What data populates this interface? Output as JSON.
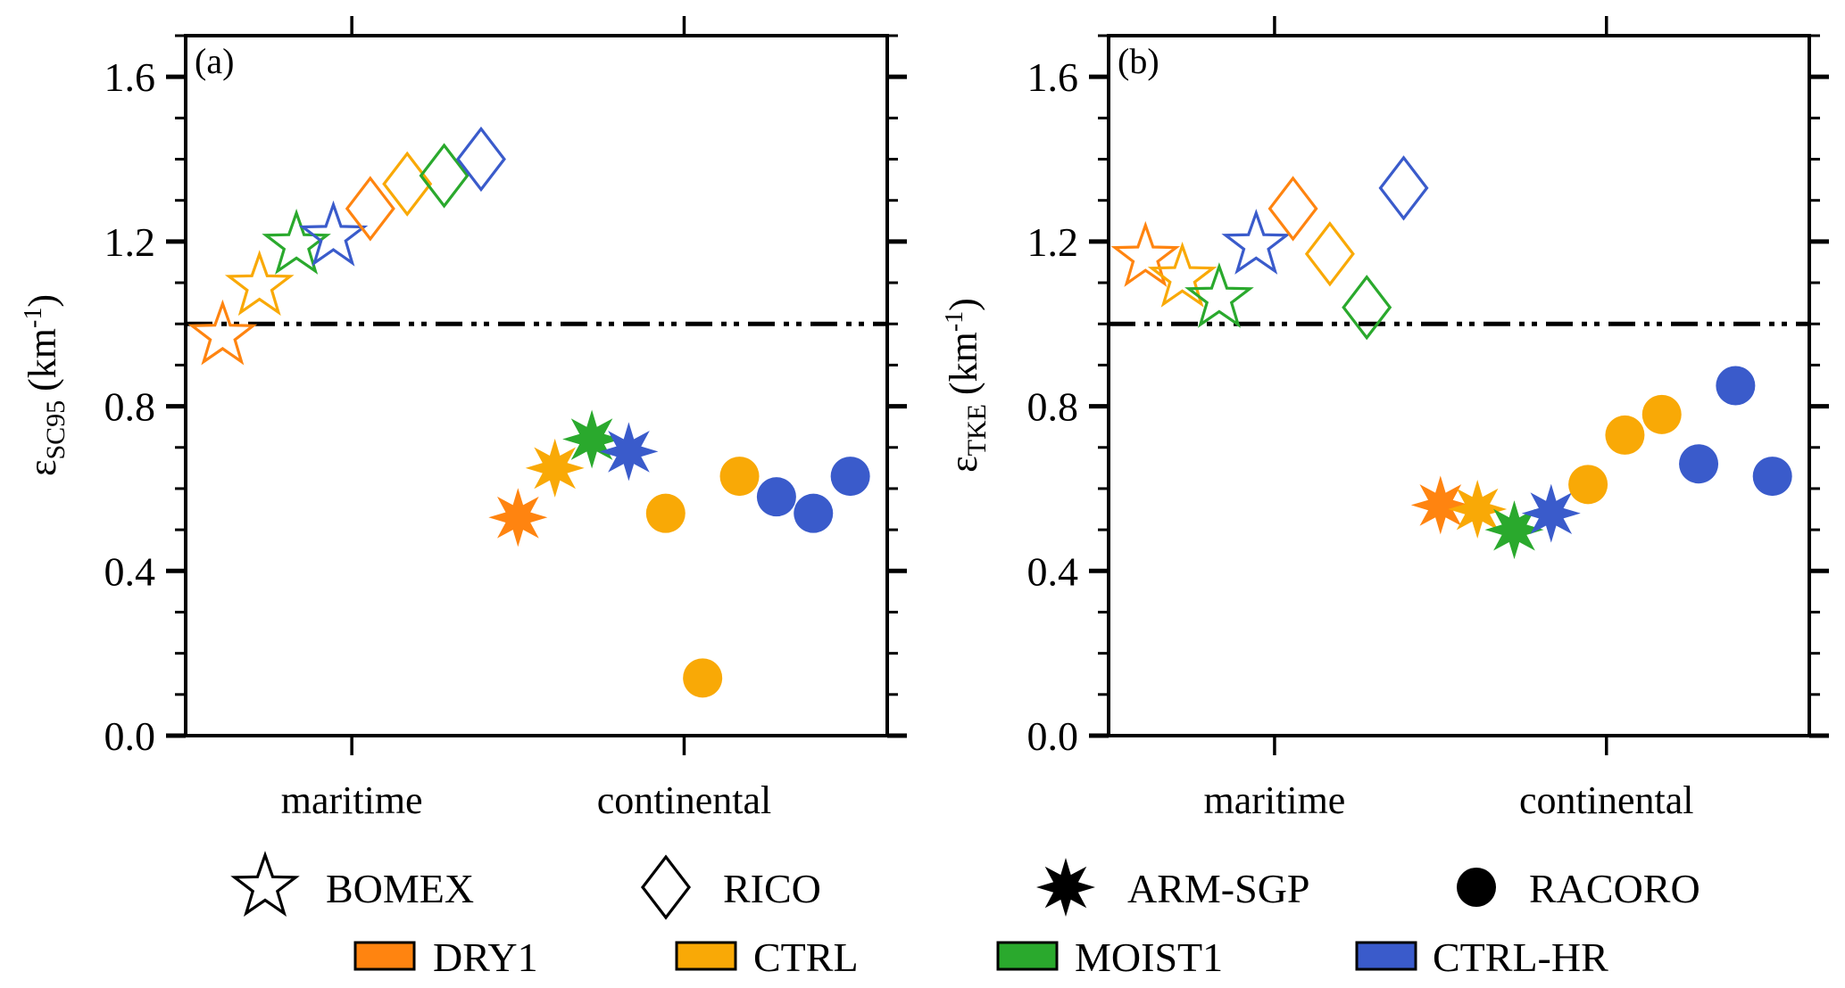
{
  "colors": {
    "DRY1": "#FF8410",
    "CTRL": "#F9A906",
    "MOIST1": "#2AA92D",
    "CTRL-HR": "#3A5BCB",
    "axis": "#000000"
  },
  "chart_data": [
    {
      "type": "scatter",
      "panel_label": "(a)",
      "ylabel_main": "ε",
      "ylabel_sub": "SC95",
      "ylabel_unit": "(km",
      "ylabel_sup": "-1",
      "ylabel_close": ")",
      "ylim": [
        0.0,
        1.7
      ],
      "yticks": [
        0.0,
        0.4,
        0.8,
        1.2,
        1.6
      ],
      "ytick_labels": [
        "0.0",
        "0.4",
        "0.8",
        "1.2",
        "1.6"
      ],
      "yminor_step": 0.1,
      "x_categories": [
        "maritime",
        "continental"
      ],
      "reference_line": 1.0,
      "points": [
        {
          "case": "BOMEX",
          "experiment": "DRY1",
          "y": 0.98
        },
        {
          "case": "BOMEX",
          "experiment": "CTRL",
          "y": 1.1
        },
        {
          "case": "BOMEX",
          "experiment": "MOIST1",
          "y": 1.2
        },
        {
          "case": "BOMEX",
          "experiment": "CTRL-HR",
          "y": 1.22
        },
        {
          "case": "RICO",
          "experiment": "DRY1",
          "y": 1.28
        },
        {
          "case": "RICO",
          "experiment": "CTRL",
          "y": 1.34
        },
        {
          "case": "RICO",
          "experiment": "MOIST1",
          "y": 1.36
        },
        {
          "case": "RICO",
          "experiment": "CTRL-HR",
          "y": 1.4
        },
        {
          "case": "ARM-SGP",
          "experiment": "DRY1",
          "y": 0.53
        },
        {
          "case": "ARM-SGP",
          "experiment": "CTRL",
          "y": 0.65
        },
        {
          "case": "ARM-SGP",
          "experiment": "MOIST1",
          "y": 0.72
        },
        {
          "case": "ARM-SGP",
          "experiment": "CTRL-HR",
          "y": 0.69
        },
        {
          "case": "RACORO",
          "experiment": "CTRL",
          "y": 0.54
        },
        {
          "case": "RACORO",
          "experiment": "CTRL",
          "y": 0.14
        },
        {
          "case": "RACORO",
          "experiment": "CTRL",
          "y": 0.63
        },
        {
          "case": "RACORO",
          "experiment": "CTRL-HR",
          "y": 0.58
        },
        {
          "case": "RACORO",
          "experiment": "CTRL-HR",
          "y": 0.54
        },
        {
          "case": "RACORO",
          "experiment": "CTRL-HR",
          "y": 0.63
        }
      ]
    },
    {
      "type": "scatter",
      "panel_label": "(b)",
      "ylabel_main": "ε",
      "ylabel_sub": "TKE",
      "ylabel_unit": "(km",
      "ylabel_sup": "-1",
      "ylabel_close": ")",
      "ylim": [
        0.0,
        1.7
      ],
      "yticks": [
        0.0,
        0.4,
        0.8,
        1.2,
        1.6
      ],
      "ytick_labels": [
        "0.0",
        "0.4",
        "0.8",
        "1.2",
        "1.6"
      ],
      "yminor_step": 0.1,
      "x_categories": [
        "maritime",
        "continental"
      ],
      "reference_line": 1.0,
      "points": [
        {
          "case": "BOMEX",
          "experiment": "DRY1",
          "y": 1.17
        },
        {
          "case": "BOMEX",
          "experiment": "CTRL",
          "y": 1.12
        },
        {
          "case": "BOMEX",
          "experiment": "MOIST1",
          "y": 1.07
        },
        {
          "case": "BOMEX",
          "experiment": "CTRL-HR",
          "y": 1.2
        },
        {
          "case": "RICO",
          "experiment": "DRY1",
          "y": 1.28
        },
        {
          "case": "RICO",
          "experiment": "CTRL",
          "y": 1.17
        },
        {
          "case": "RICO",
          "experiment": "MOIST1",
          "y": 1.04
        },
        {
          "case": "RICO",
          "experiment": "CTRL-HR",
          "y": 1.33
        },
        {
          "case": "ARM-SGP",
          "experiment": "DRY1",
          "y": 0.56
        },
        {
          "case": "ARM-SGP",
          "experiment": "CTRL",
          "y": 0.55
        },
        {
          "case": "ARM-SGP",
          "experiment": "MOIST1",
          "y": 0.5
        },
        {
          "case": "ARM-SGP",
          "experiment": "CTRL-HR",
          "y": 0.54
        },
        {
          "case": "RACORO",
          "experiment": "CTRL",
          "y": 0.61
        },
        {
          "case": "RACORO",
          "experiment": "CTRL",
          "y": 0.73
        },
        {
          "case": "RACORO",
          "experiment": "CTRL",
          "y": 0.78
        },
        {
          "case": "RACORO",
          "experiment": "CTRL-HR",
          "y": 0.66
        },
        {
          "case": "RACORO",
          "experiment": "CTRL-HR",
          "y": 0.85
        },
        {
          "case": "RACORO",
          "experiment": "CTRL-HR",
          "y": 0.63
        }
      ]
    }
  ],
  "legend": {
    "cases": [
      {
        "label": "BOMEX",
        "marker": "open-star"
      },
      {
        "label": "RICO",
        "marker": "open-diamond"
      },
      {
        "label": "ARM-SGP",
        "marker": "filled-8-point-star"
      },
      {
        "label": "RACORO",
        "marker": "filled-circle"
      }
    ],
    "experiments": [
      {
        "label": "DRY1",
        "color": "#FF8410"
      },
      {
        "label": "CTRL",
        "color": "#F9A906"
      },
      {
        "label": "MOIST1",
        "color": "#2AA92D"
      },
      {
        "label": "CTRL-HR",
        "color": "#3A5BCB"
      }
    ]
  }
}
